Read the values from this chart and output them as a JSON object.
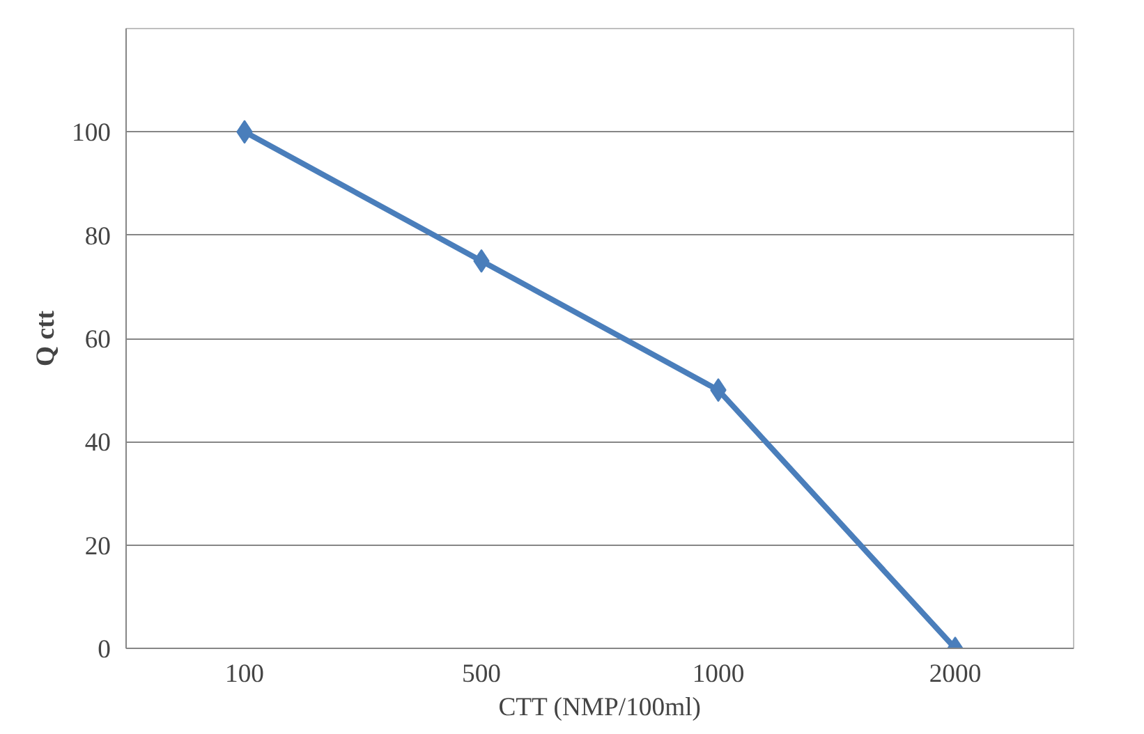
{
  "chart_data": {
    "type": "line",
    "xlabel": "CTT (NMP/100ml)",
    "ylabel": "Q ctt",
    "categories": [
      "100",
      "500",
      "1000",
      "2000"
    ],
    "series": [
      {
        "color": "#4a7ebb",
        "values": [
          100,
          75,
          50,
          0
        ]
      }
    ],
    "ylim": [
      0,
      120
    ],
    "yticks": [
      0,
      20,
      40,
      60,
      80,
      100
    ],
    "grid": "y",
    "marker": "diamond",
    "line_style": "solid"
  }
}
